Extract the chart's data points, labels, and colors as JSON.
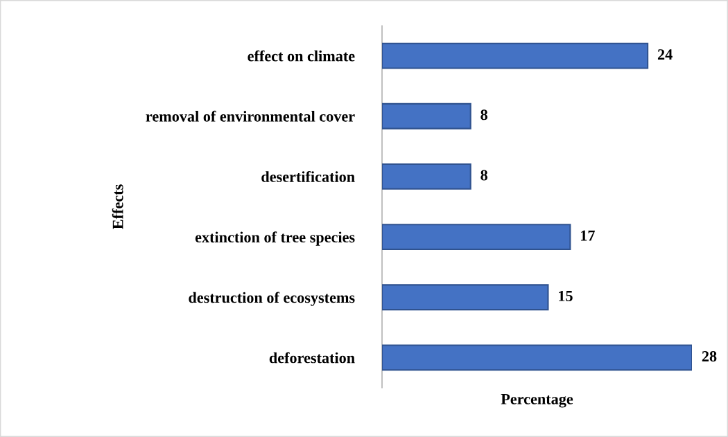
{
  "chart_data": {
    "type": "bar",
    "orientation": "horizontal",
    "categories": [
      "effect on climate",
      "removal of environmental cover",
      "desertification",
      "extinction of tree species",
      "destruction of ecosystems",
      "deforestation"
    ],
    "values": [
      24,
      8,
      8,
      17,
      15,
      28
    ],
    "color": "#4472c4",
    "xlabel": "Percentage",
    "ylabel": "Effects",
    "data_labels": true,
    "tick_labels": "y"
  }
}
